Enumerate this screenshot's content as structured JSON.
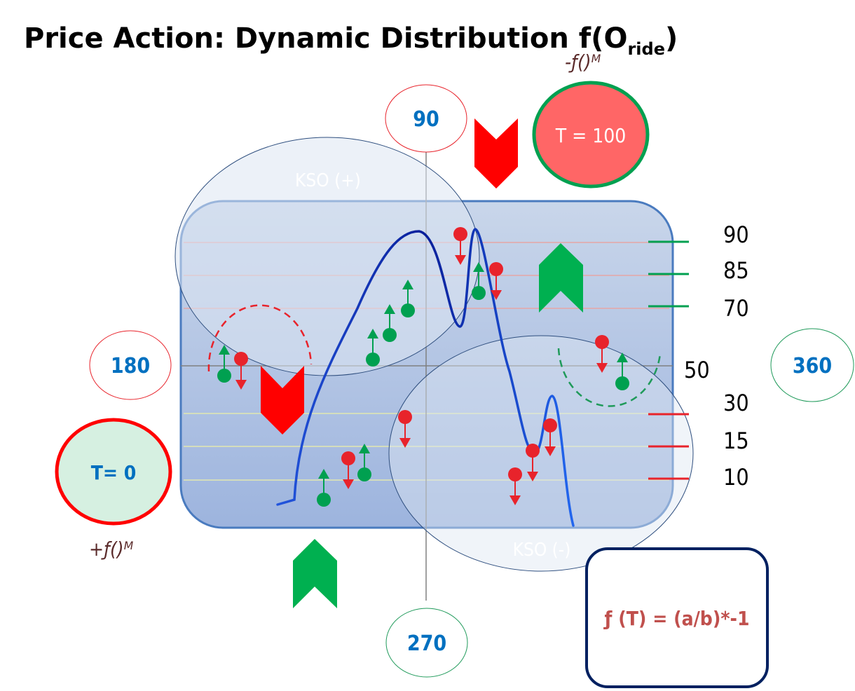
{
  "title": {
    "main": "Price Action: Dynamic Distribution f(O",
    "subscript": "ride",
    "close": ")"
  },
  "annotations": {
    "minus_f_m": "-ƒ()ᴹ",
    "plus_f_m": "+ƒ()ᴹ"
  },
  "circles": {
    "deg_90": "90",
    "deg_180": "180",
    "deg_270": "270",
    "deg_360": "360",
    "t100": "T = 100",
    "t0": "T= 0"
  },
  "zones": {
    "kso_plus": "KSO (+)",
    "kso_minus": "KSO (-)"
  },
  "levels": {
    "upper": [
      "90",
      "85",
      "70"
    ],
    "mid": "50",
    "lower": [
      "30",
      "15",
      "10"
    ]
  },
  "formula": "ƒ (T) = (a/b)*-1",
  "colors": {
    "red": "#ff0000",
    "green": "#00b050",
    "blue_label": "#0070c0",
    "panel_border": "#4a7bbf",
    "formula_text": "#c0504d",
    "formula_border": "#002060",
    "t100_fill": "#ff6666",
    "t0_fill": "#d6f0e1",
    "annotation": "#5a2a2a"
  }
}
